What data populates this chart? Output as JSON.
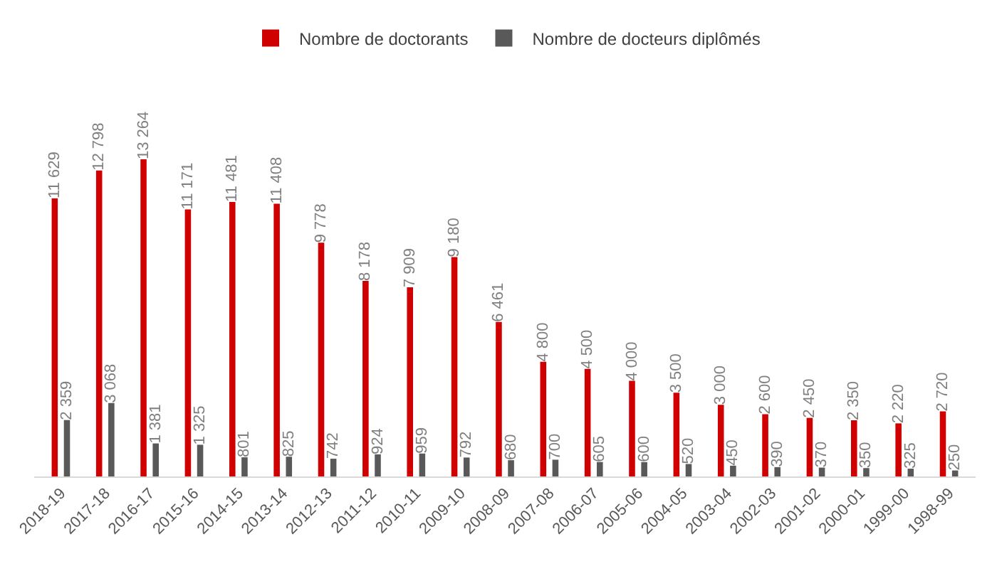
{
  "chart_data": {
    "type": "bar",
    "categories": [
      "2018-19",
      "2017-18",
      "2016-17",
      "2015-16",
      "2014-15",
      "2013-14",
      "2012-13",
      "2011-12",
      "2010-11",
      "2009-10",
      "2008-09",
      "2007-08",
      "2006-07",
      "2005-06",
      "2004-05",
      "2003-04",
      "2002-03",
      "2001-02",
      "2000-01",
      "1999-00",
      "1998-99"
    ],
    "series": [
      {
        "name": "Nombre de doctorants",
        "color": "#d00000",
        "values": [
          11629,
          12798,
          13264,
          11171,
          11481,
          11408,
          9778,
          8178,
          7909,
          9180,
          6461,
          4800,
          4500,
          4000,
          3500,
          3000,
          2600,
          2450,
          2350,
          2220,
          2720
        ],
        "value_labels": [
          "11 629",
          "12 798",
          "13 264",
          "11 171",
          "11 481",
          "11 408",
          "9 778",
          "8 178",
          "7 909",
          "9 180",
          "6 461",
          "4 800",
          "4 500",
          "4 000",
          "3 500",
          "3 000",
          "2 600",
          "2 450",
          "2 350",
          "2 220",
          "2 720"
        ]
      },
      {
        "name": "Nombre de docteurs diplômés",
        "color": "#595959",
        "values": [
          2359,
          3068,
          1381,
          1325,
          801,
          825,
          742,
          924,
          959,
          792,
          680,
          700,
          605,
          600,
          520,
          450,
          390,
          370,
          350,
          325,
          250
        ],
        "value_labels": [
          "2 359",
          "3 068",
          "1 381",
          "1 325",
          "801",
          "825",
          "742",
          "924",
          "959",
          "792",
          "680",
          "700",
          "605",
          "600",
          "520",
          "450",
          "390",
          "370",
          "350",
          "325",
          "250"
        ]
      }
    ],
    "legend": "top",
    "grid": false
  }
}
